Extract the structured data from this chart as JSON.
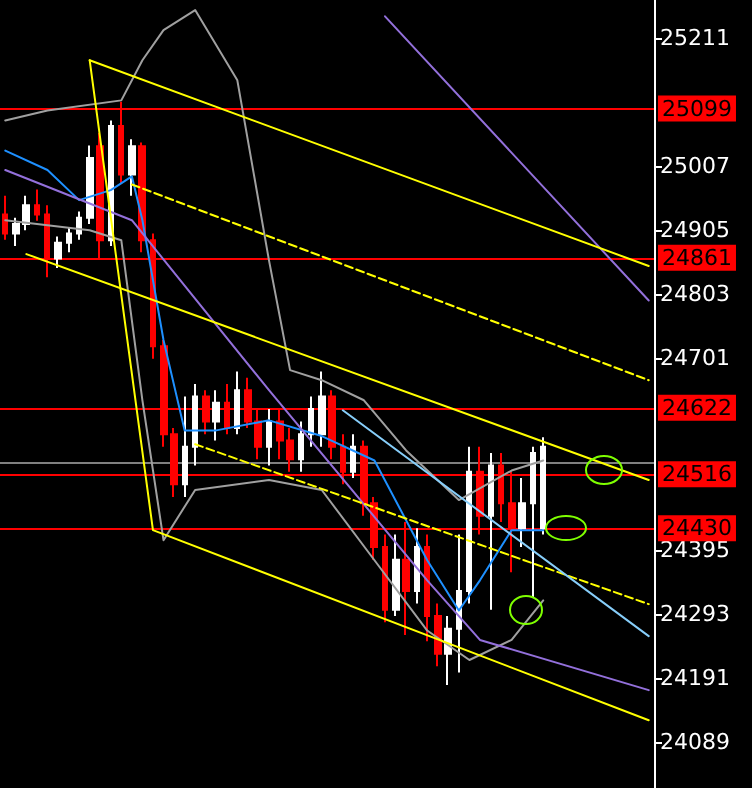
{
  "chart_data": {
    "type": "candlestick",
    "categories": [
      null,
      null,
      null,
      null,
      null,
      null,
      null,
      null,
      null,
      null,
      null,
      null,
      null,
      null,
      null,
      null,
      null,
      null,
      null,
      null,
      null,
      null,
      null,
      null,
      null,
      null,
      null,
      null,
      null,
      null,
      null,
      null,
      null,
      null,
      null,
      null,
      null,
      null,
      null,
      null,
      null,
      null,
      null,
      null,
      null,
      null,
      null,
      null,
      null,
      null,
      null,
      null,
      null,
      null,
      null,
      null,
      null,
      null,
      null,
      null,
      null,
      null
    ],
    "ohlc": [
      [
        24930,
        24960,
        24890,
        24900
      ],
      [
        24900,
        24925,
        24880,
        24915
      ],
      [
        24915,
        24960,
        24905,
        24945
      ],
      [
        24945,
        24970,
        24920,
        24930
      ],
      [
        24930,
        24945,
        24830,
        24860
      ],
      [
        24860,
        24895,
        24845,
        24885
      ],
      [
        24885,
        24910,
        24870,
        24900
      ],
      [
        24900,
        24935,
        24890,
        24925
      ],
      [
        24925,
        25040,
        24915,
        25020
      ],
      [
        25039,
        25060,
        24860,
        24889
      ],
      [
        24889,
        25080,
        24880,
        25071
      ],
      [
        25071,
        25110,
        24980,
        24994
      ],
      [
        24994,
        25050,
        24960,
        25039
      ],
      [
        25039,
        25045,
        24870,
        24889
      ],
      [
        24889,
        24900,
        24700,
        24720
      ],
      [
        24720,
        24730,
        24560,
        24580
      ],
      [
        24580,
        24590,
        24480,
        24500
      ],
      [
        24500,
        24640,
        24480,
        24560
      ],
      [
        24560,
        24660,
        24530,
        24640
      ],
      [
        24640,
        24650,
        24580,
        24600
      ],
      [
        24600,
        24650,
        24570,
        24630
      ],
      [
        24630,
        24660,
        24580,
        24590
      ],
      [
        24590,
        24680,
        24580,
        24650
      ],
      [
        24650,
        24670,
        24590,
        24600
      ],
      [
        24600,
        24620,
        24540,
        24560
      ],
      [
        24560,
        24620,
        24530,
        24600
      ],
      [
        24600,
        24620,
        24540,
        24570
      ],
      [
        24570,
        24590,
        24520,
        24540
      ],
      [
        24540,
        24600,
        24520,
        24580
      ],
      [
        24580,
        24640,
        24560,
        24620
      ],
      [
        24580,
        24680,
        24560,
        24640
      ],
      [
        24640,
        24650,
        24540,
        24560
      ],
      [
        24560,
        24580,
        24500,
        24520
      ],
      [
        24520,
        24580,
        24510,
        24560
      ],
      [
        24560,
        24570,
        24450,
        24470
      ],
      [
        24470,
        24480,
        24380,
        24400
      ],
      [
        24400,
        24420,
        24280,
        24300
      ],
      [
        24300,
        24420,
        24290,
        24380
      ],
      [
        24380,
        24440,
        24260,
        24330
      ],
      [
        24330,
        24430,
        24310,
        24400
      ],
      [
        24400,
        24420,
        24250,
        24290
      ],
      [
        24290,
        24310,
        24210,
        24230
      ],
      [
        24230,
        24290,
        24180,
        24270
      ],
      [
        24270,
        24420,
        24200,
        24330
      ],
      [
        24330,
        24560,
        24310,
        24520
      ],
      [
        24520,
        24560,
        24420,
        24450
      ],
      [
        24450,
        24550,
        24300,
        24530
      ],
      [
        24530,
        24550,
        24440,
        24470
      ],
      [
        24470,
        24520,
        24360,
        24430
      ],
      [
        24430,
        24510,
        24400,
        24470
      ],
      [
        24470,
        24560,
        24320,
        24550
      ],
      [
        24430,
        24575,
        24420,
        24560
      ],
      null,
      null,
      null,
      null,
      null,
      null,
      null,
      null,
      null,
      null
    ],
    "series": [
      {
        "type": "line",
        "color": "#a0a0a0",
        "line_style": "solid",
        "values": [
          25080,
          null,
          null,
          null,
          25096,
          null,
          null,
          null,
          null,
          null,
          null,
          25112,
          null,
          25176,
          null,
          25224,
          null,
          null,
          25256,
          null,
          null,
          null,
          25144,
          null,
          null,
          24857,
          null,
          24682,
          null,
          null,
          24666,
          null,
          null,
          null,
          24634,
          null,
          null,
          null,
          24554,
          null,
          null,
          null,
          null,
          24475,
          null,
          null,
          null,
          null,
          24522,
          null,
          null,
          24538,
          null,
          null,
          null,
          null,
          null,
          null,
          null,
          null,
          null,
          null
        ]
      },
      {
        "type": "line",
        "color": "#a0a0a0",
        "line_style": "solid",
        "values": [
          24921,
          null,
          null,
          null,
          null,
          null,
          null,
          null,
          24905,
          null,
          null,
          24889,
          null,
          24634,
          null,
          24411,
          null,
          null,
          24491,
          null,
          null,
          null,
          null,
          null,
          null,
          24507,
          null,
          null,
          null,
          null,
          24491,
          null,
          null,
          null,
          null,
          24379,
          null,
          null,
          null,
          null,
          24267,
          null,
          null,
          null,
          24220,
          null,
          null,
          null,
          24252,
          null,
          null,
          24315,
          null,
          null,
          null,
          null,
          null,
          null,
          null,
          null,
          null,
          null
        ]
      },
      {
        "type": "line",
        "color": "#1e90ff",
        "line_style": "solid",
        "values": [
          25032,
          null,
          null,
          null,
          25001,
          null,
          null,
          24953,
          null,
          null,
          24969,
          null,
          24991,
          24921,
          null,
          24730,
          null,
          24586,
          null,
          null,
          24586,
          null,
          null,
          null,
          null,
          24602,
          null,
          null,
          null,
          null,
          24577,
          null,
          null,
          null,
          null,
          24538,
          null,
          null,
          null,
          null,
          24379,
          null,
          null,
          24299,
          null,
          24347,
          null,
          null,
          24427,
          null,
          null,
          24427,
          null,
          null,
          null,
          null,
          null,
          null,
          null,
          null,
          null,
          null
        ]
      },
      {
        "type": "line",
        "color": "#9370db",
        "line_style": "solid",
        "values": [
          25001,
          null,
          null,
          null,
          null,
          null,
          null,
          null,
          null,
          null,
          null,
          null,
          24921,
          null,
          null,
          null,
          null,
          null,
          null,
          null,
          null,
          null,
          null,
          null,
          null,
          24650,
          null,
          null,
          null,
          null,
          null,
          null,
          null,
          null,
          null,
          null,
          null,
          null,
          null,
          null,
          24347,
          null,
          null,
          null,
          null,
          24252,
          null,
          null,
          null,
          null,
          null,
          null,
          null,
          null,
          null,
          null,
          null,
          null,
          null,
          null,
          null,
          24172
        ]
      },
      {
        "type": "line",
        "color": "#9370db",
        "line_style": "solid",
        "values": [
          null,
          null,
          null,
          null,
          null,
          null,
          null,
          null,
          null,
          null,
          null,
          null,
          null,
          null,
          null,
          null,
          null,
          null,
          null,
          null,
          null,
          null,
          null,
          null,
          null,
          null,
          null,
          null,
          null,
          null,
          null,
          null,
          null,
          null,
          null,
          null,
          25246,
          null,
          null,
          null,
          null,
          null,
          null,
          null,
          null,
          null,
          null,
          null,
          null,
          null,
          null,
          null,
          null,
          null,
          null,
          null,
          null,
          null,
          null,
          null,
          null,
          24793
        ]
      },
      {
        "type": "line",
        "color": "#ffff00",
        "line_style": "solid",
        "values": [
          null,
          null,
          null,
          null,
          null,
          null,
          null,
          null,
          25176,
          null,
          null,
          null,
          null,
          null,
          null,
          null,
          null,
          null,
          null,
          null,
          null,
          null,
          null,
          null,
          null,
          null,
          null,
          null,
          null,
          null,
          null,
          null,
          null,
          null,
          null,
          null,
          null,
          null,
          null,
          null,
          null,
          null,
          null,
          null,
          null,
          null,
          null,
          null,
          null,
          null,
          null,
          null,
          null,
          null,
          null,
          null,
          null,
          null,
          null,
          null,
          null,
          24848
        ]
      },
      {
        "type": "line",
        "color": "#ffff00",
        "line_style": "solid",
        "values": [
          null,
          null,
          null,
          null,
          null,
          null,
          null,
          null,
          25176,
          null,
          null,
          null,
          null,
          null,
          24427,
          null,
          null,
          null,
          null,
          null,
          null,
          null,
          null,
          null,
          null,
          null,
          null,
          null,
          null,
          null,
          null,
          null,
          null,
          null,
          null,
          null,
          null,
          null,
          null,
          null,
          null,
          null,
          null,
          null,
          null,
          null,
          null,
          null,
          null,
          null,
          null,
          null,
          null,
          null,
          null,
          null,
          null,
          null,
          null,
          null,
          null,
          24124
        ]
      },
      {
        "type": "line",
        "color": "#ffff00",
        "line_style": "solid",
        "values": [
          null,
          null,
          24867,
          null,
          null,
          null,
          null,
          null,
          null,
          null,
          null,
          null,
          null,
          null,
          null,
          null,
          null,
          null,
          null,
          null,
          null,
          null,
          null,
          null,
          null,
          null,
          null,
          null,
          null,
          null,
          null,
          null,
          null,
          null,
          null,
          null,
          null,
          null,
          null,
          null,
          null,
          null,
          null,
          null,
          null,
          null,
          null,
          null,
          null,
          null,
          null,
          null,
          null,
          null,
          null,
          null,
          null,
          null,
          null,
          null,
          null,
          24507
        ]
      },
      {
        "type": "line",
        "color": "#ffff00",
        "line_style": "dashed",
        "values": [
          null,
          null,
          null,
          null,
          null,
          null,
          null,
          null,
          null,
          null,
          null,
          null,
          24978,
          null,
          null,
          null,
          null,
          null,
          null,
          null,
          null,
          null,
          null,
          null,
          null,
          null,
          null,
          null,
          null,
          null,
          null,
          null,
          null,
          null,
          null,
          null,
          null,
          null,
          null,
          null,
          null,
          null,
          null,
          null,
          null,
          null,
          null,
          null,
          null,
          null,
          null,
          null,
          null,
          null,
          null,
          null,
          null,
          null,
          null,
          null,
          null,
          24666
        ]
      },
      {
        "type": "line",
        "color": "#ffff00",
        "line_style": "dashed",
        "values": [
          null,
          null,
          null,
          null,
          null,
          null,
          null,
          null,
          null,
          null,
          null,
          null,
          null,
          null,
          null,
          null,
          null,
          null,
          24564,
          null,
          null,
          null,
          null,
          null,
          null,
          null,
          null,
          null,
          null,
          null,
          null,
          null,
          null,
          null,
          null,
          null,
          null,
          null,
          null,
          null,
          null,
          null,
          null,
          null,
          null,
          null,
          null,
          null,
          null,
          null,
          null,
          null,
          null,
          null,
          null,
          null,
          null,
          null,
          null,
          null,
          null,
          24309
        ]
      },
      {
        "type": "line",
        "color": "#87cefa",
        "line_style": "solid",
        "values": [
          null,
          null,
          null,
          null,
          null,
          null,
          null,
          null,
          null,
          null,
          null,
          null,
          null,
          null,
          null,
          null,
          null,
          null,
          null,
          null,
          null,
          null,
          null,
          null,
          null,
          null,
          null,
          null,
          null,
          null,
          null,
          null,
          24618,
          null,
          null,
          null,
          null,
          null,
          null,
          null,
          null,
          null,
          null,
          null,
          null,
          null,
          null,
          null,
          null,
          null,
          null,
          null,
          null,
          null,
          null,
          null,
          null,
          null,
          null,
          null,
          null,
          24258
        ]
      }
    ],
    "ylim": [
      24016,
      25272
    ],
    "yticks": [
      25211,
      25007,
      24905,
      24803,
      24701,
      24395,
      24293,
      24191,
      24089
    ],
    "tick_labels": "y",
    "ref_lines": [
      {
        "axis": "y",
        "value": 25099,
        "label": "25099",
        "color": "#ff0000"
      },
      {
        "axis": "y",
        "value": 24861,
        "label": "24861",
        "color": "#ff0000"
      },
      {
        "axis": "y",
        "value": 24622,
        "label": "24622",
        "color": "#ff0000"
      },
      {
        "axis": "y",
        "value": 24535,
        "color": "#808080"
      },
      {
        "axis": "y",
        "value": 24516,
        "label": "24516",
        "color": "#ff0000"
      },
      {
        "axis": "y",
        "value": 24430,
        "label": "24430",
        "color": "#ff0000"
      }
    ]
  }
}
